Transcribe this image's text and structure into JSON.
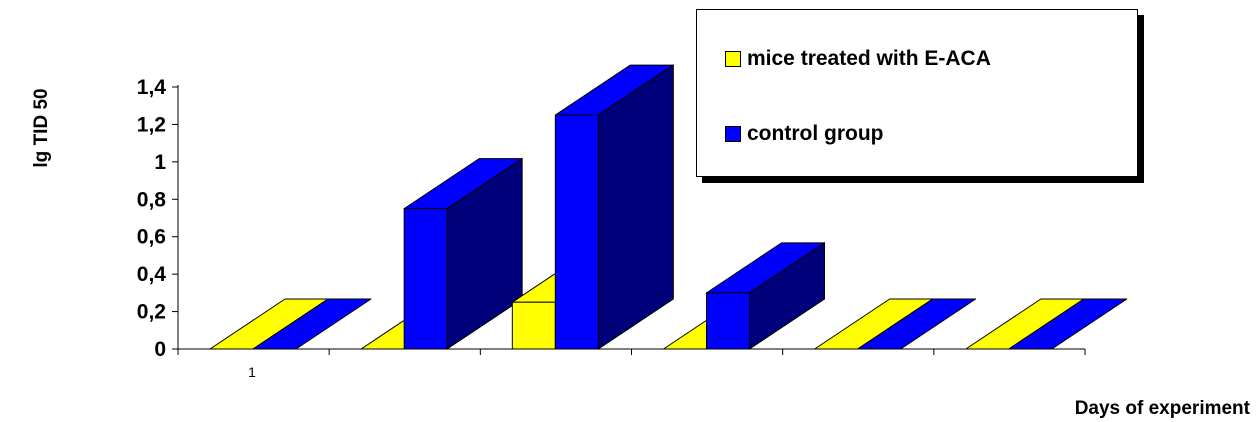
{
  "chart_data": {
    "type": "bar",
    "style": "3d",
    "categories": [
      "1",
      "",
      "",
      "",
      "",
      ""
    ],
    "series": [
      {
        "name": "mice treated with E-ACA",
        "values": [
          0,
          0,
          0.25,
          0,
          0,
          0
        ],
        "color": "#ffff00",
        "side_color": "#b8b800"
      },
      {
        "name": "control group",
        "values": [
          0,
          0.75,
          1.25,
          0.3,
          0,
          0
        ],
        "color": "#0000ff",
        "side_color": "#00007a"
      }
    ],
    "ylabel": "lg TID 50",
    "xlabel": "Days of experiment",
    "ylim": [
      0,
      1.4
    ],
    "yticks": [
      "0",
      "0,2",
      "0,4",
      "0,6",
      "0,8",
      "1",
      "1,2",
      "1,4"
    ],
    "grid": false,
    "legend_position": "top-right"
  }
}
